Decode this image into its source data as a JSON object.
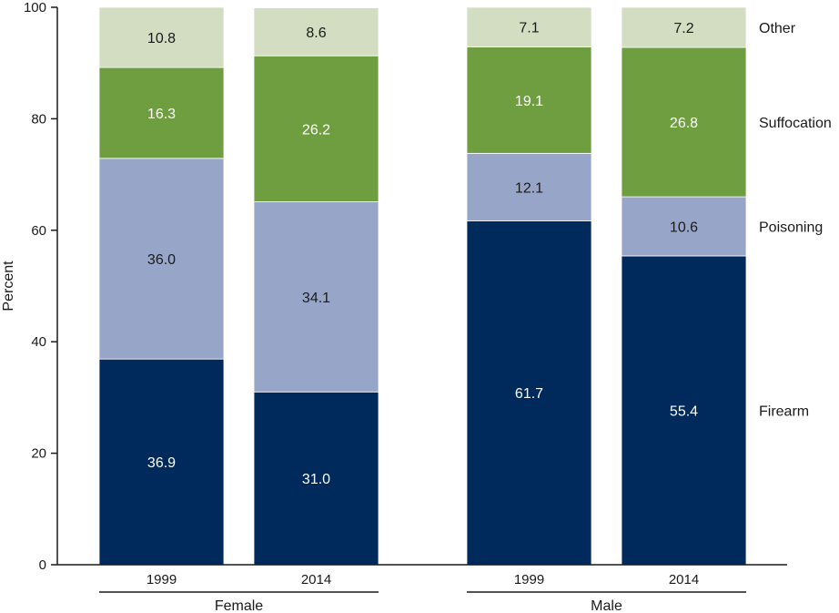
{
  "chart_data": {
    "type": "bar",
    "stacked": true,
    "ylabel": "Percent",
    "ylim": [
      0,
      100
    ],
    "yticks": [
      "0",
      "20",
      "40",
      "60",
      "80",
      "100"
    ],
    "groups": [
      {
        "label": "Female",
        "bars": [
          {
            "label": "1999",
            "values": [
              36.9,
              36.0,
              16.3,
              10.8
            ],
            "labels": [
              "36.9",
              "36.0",
              "16.3",
              "10.8"
            ]
          },
          {
            "label": "2014",
            "values": [
              31.0,
              34.1,
              26.2,
              8.6
            ],
            "labels": [
              "31.0",
              "34.1",
              "26.2",
              "8.6"
            ]
          }
        ]
      },
      {
        "label": "Male",
        "bars": [
          {
            "label": "1999",
            "values": [
              61.7,
              12.1,
              19.1,
              7.1
            ],
            "labels": [
              "61.7",
              "12.1",
              "19.1",
              "7.1"
            ]
          },
          {
            "label": "2014",
            "values": [
              55.4,
              10.6,
              26.8,
              7.2
            ],
            "labels": [
              "55.4",
              "10.6",
              "26.8",
              "7.2"
            ]
          }
        ]
      }
    ],
    "series": [
      {
        "name": "Firearm",
        "color": "#002a5c",
        "text_color": "#ffffff"
      },
      {
        "name": "Poisoning",
        "color": "#97a6c8",
        "text_color": "#1a1a1a"
      },
      {
        "name": "Suffocation",
        "color": "#6e9e40",
        "text_color": "#ffffff"
      },
      {
        "name": "Other",
        "color": "#d2ddc1",
        "text_color": "#1a1a1a"
      }
    ],
    "legend_placement": "right"
  }
}
